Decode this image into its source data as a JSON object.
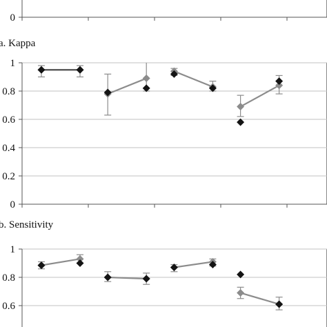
{
  "captions": {
    "kappa": "a. Kappa",
    "sensitivity": "b. Sensitivity"
  },
  "colors": {
    "black_series": "#141414",
    "gray_series": "#8c8c8c",
    "error_bar": "#8c8c8c",
    "grid": "#c0c0c0",
    "frame": "#888888"
  },
  "chart_data": [
    {
      "type": "line",
      "title": "",
      "caption": "",
      "ylim": [
        0,
        1
      ],
      "ytick_labels": [
        "0"
      ],
      "grid": true,
      "visible": "partial (only y = 0 baseline shown)",
      "groups": []
    },
    {
      "type": "line",
      "title": "",
      "caption": "a. Kappa",
      "ylim": [
        0,
        1
      ],
      "ytick_labels": [
        "0",
        "0.2",
        "0.4",
        "0.6",
        "0.8",
        "1"
      ],
      "grid": true,
      "groups": [
        {
          "black": [
            0.95,
            0.95
          ],
          "gray": [
            0.95,
            0.95
          ],
          "gray_err": [
            [
              0.9,
              0.98
            ],
            [
              0.9,
              0.98
            ]
          ],
          "black_line": true
        },
        {
          "black": [
            0.79,
            0.82
          ],
          "gray": [
            0.78,
            0.89
          ],
          "gray_err": [
            [
              0.63,
              0.92
            ],
            [
              0.8,
              1.0
            ]
          ],
          "black_line": false
        },
        {
          "black": [
            0.92,
            0.82
          ],
          "gray": [
            0.94,
            0.83
          ],
          "gray_err": [
            [
              0.91,
              0.96
            ],
            [
              0.8,
              0.87
            ]
          ],
          "black_line": false
        },
        {
          "black": [
            0.58,
            0.87
          ],
          "gray": [
            0.69,
            0.84
          ],
          "gray_err": [
            [
              0.62,
              0.77
            ],
            [
              0.78,
              0.91
            ]
          ],
          "black_line": false
        }
      ]
    },
    {
      "type": "line",
      "title": "",
      "caption": "b. Sensitivity",
      "ylim": [
        0.4,
        1
      ],
      "ytick_labels": [
        "0.6",
        "0.8",
        "1"
      ],
      "grid": true,
      "groups": [
        {
          "black": [
            0.885,
            0.9
          ],
          "gray": [
            0.885,
            0.93
          ],
          "gray_err": [
            [
              0.86,
              0.91
            ],
            [
              0.9,
              0.96
            ]
          ],
          "black_line": false
        },
        {
          "black": [
            0.8,
            0.79
          ],
          "gray": [
            0.8,
            0.79
          ],
          "gray_err": [
            [
              0.77,
              0.84
            ],
            [
              0.75,
              0.83
            ]
          ],
          "black_line": false
        },
        {
          "black": [
            0.87,
            0.89
          ],
          "gray": [
            0.87,
            0.91
          ],
          "gray_err": [
            [
              0.84,
              0.89
            ],
            [
              0.88,
              0.93
            ]
          ],
          "black_line": false
        },
        {
          "black": [
            0.82,
            0.61
          ],
          "gray": [
            0.69,
            0.61
          ],
          "gray_err": [
            [
              0.65,
              0.73
            ],
            [
              0.57,
              0.66
            ]
          ],
          "black_line": false
        }
      ]
    }
  ]
}
